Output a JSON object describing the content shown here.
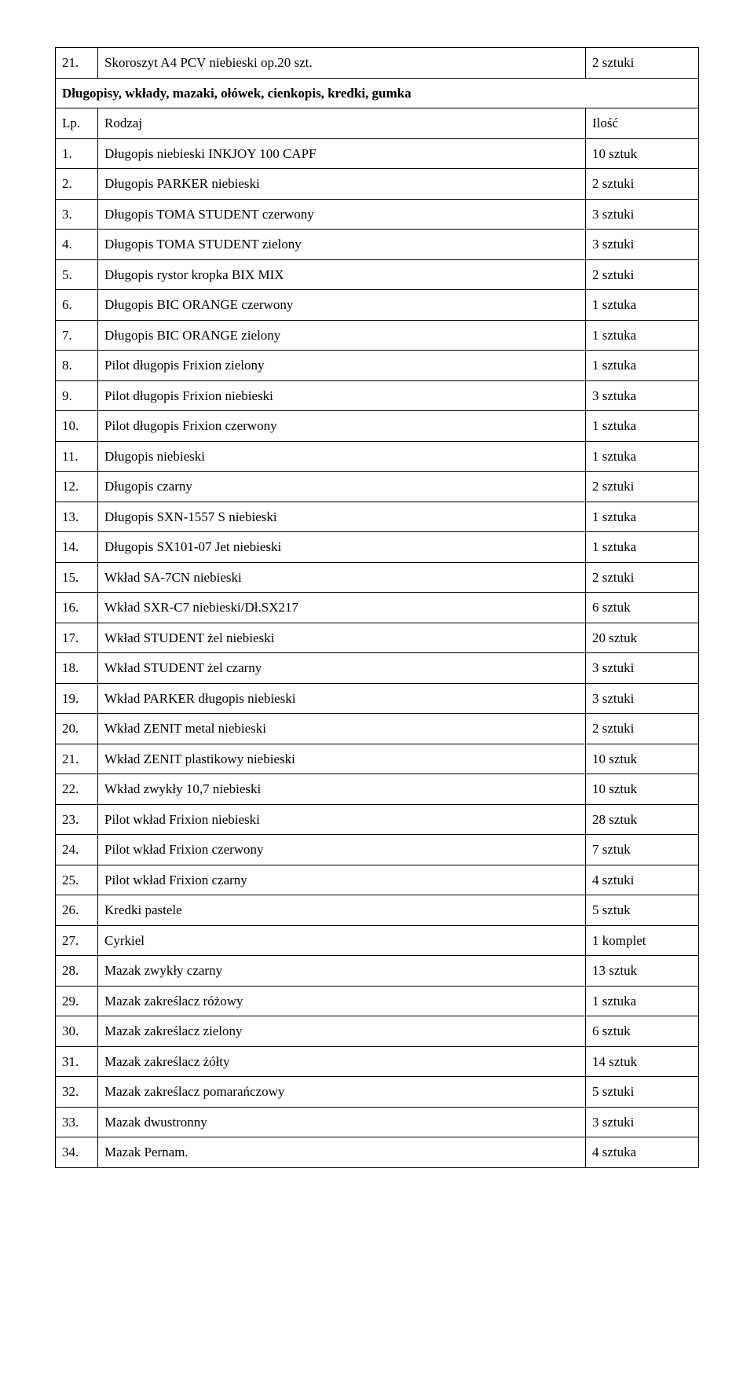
{
  "table1": {
    "row": {
      "num": "21.",
      "desc": "Skoroszyt A4 PCV niebieski op.20 szt.",
      "qty": "2 sztuki"
    }
  },
  "section2": {
    "title": "Długopisy, wkłady, mazaki, ołówek, cienkopis, kredki, gumka",
    "header": {
      "num": "Lp.",
      "desc": "Rodzaj",
      "qty": "Ilość"
    },
    "rows": [
      {
        "num": "1.",
        "desc": "Długopis niebieski INKJOY 100 CAPF",
        "qty": "10 sztuk"
      },
      {
        "num": "2.",
        "desc": "Długopis PARKER niebieski",
        "qty": "2 sztuki"
      },
      {
        "num": "3.",
        "desc": "Długopis TOMA STUDENT czerwony",
        "qty": "3 sztuki"
      },
      {
        "num": "4.",
        "desc": "Długopis TOMA STUDENT zielony",
        "qty": "3 sztuki"
      },
      {
        "num": "5.",
        "desc": "Długopis rystor kropka BIX MIX",
        "qty": "2 sztuki"
      },
      {
        "num": "6.",
        "desc": "Długopis BIC ORANGE czerwony",
        "qty": "1 sztuka"
      },
      {
        "num": "7.",
        "desc": "Długopis BIC ORANGE zielony",
        "qty": "1 sztuka"
      },
      {
        "num": "8.",
        "desc": "Pilot długopis Frixion zielony",
        "qty": "1 sztuka"
      },
      {
        "num": "9.",
        "desc": "Pilot długopis Frixion niebieski",
        "qty": "3 sztuka"
      },
      {
        "num": "10.",
        "desc": "Pilot długopis Frixion czerwony",
        "qty": "1 sztuka"
      },
      {
        "num": "11.",
        "desc": "Długopis niebieski",
        "qty": "1 sztuka"
      },
      {
        "num": "12.",
        "desc": "Długopis czarny",
        "qty": "2 sztuki"
      },
      {
        "num": "13.",
        "desc": "Długopis SXN-1557 S niebieski",
        "qty": "1 sztuka"
      },
      {
        "num": "14.",
        "desc": "Długopis SX101-07 Jet niebieski",
        "qty": "1 sztuka"
      },
      {
        "num": "15.",
        "desc": "Wkład SA-7CN niebieski",
        "qty": "2 sztuki"
      },
      {
        "num": "16.",
        "desc": "Wkład SXR-C7 niebieski/Dł.SX217",
        "qty": "6 sztuk"
      },
      {
        "num": "17.",
        "desc": "Wkład STUDENT żel niebieski",
        "qty": "20 sztuk"
      },
      {
        "num": "18.",
        "desc": "Wkład STUDENT żel czarny",
        "qty": "3 sztuki"
      },
      {
        "num": "19.",
        "desc": "Wkład PARKER długopis niebieski",
        "qty": "3 sztuki"
      },
      {
        "num": "20.",
        "desc": "Wkład ZENIT metal niebieski",
        "qty": "2 sztuki"
      },
      {
        "num": "21.",
        "desc": "Wkład ZENIT plastikowy niebieski",
        "qty": "10 sztuk"
      },
      {
        "num": "22.",
        "desc": "Wkład zwykły 10,7 niebieski",
        "qty": "10 sztuk"
      },
      {
        "num": "23.",
        "desc": "Pilot wkład Frixion niebieski",
        "qty": "28 sztuk"
      },
      {
        "num": "24.",
        "desc": "Pilot wkład Frixion czerwony",
        "qty": "7 sztuk"
      },
      {
        "num": "25.",
        "desc": "Pilot wkład Frixion czarny",
        "qty": "4 sztuki"
      },
      {
        "num": "26.",
        "desc": "Kredki pastele",
        "qty": "5 sztuk"
      },
      {
        "num": "27.",
        "desc": "Cyrkiel",
        "qty": "1 komplet"
      },
      {
        "num": "28.",
        "desc": "Mazak zwykły czarny",
        "qty": "13 sztuk"
      },
      {
        "num": "29.",
        "desc": "Mazak zakreślacz różowy",
        "qty": "1 sztuka"
      },
      {
        "num": "30.",
        "desc": "Mazak zakreślacz zielony",
        "qty": "6 sztuk"
      },
      {
        "num": "31.",
        "desc": "Mazak zakreślacz żółty",
        "qty": "14 sztuk"
      },
      {
        "num": "32.",
        "desc": "Mazak zakreślacz pomarańczowy",
        "qty": "5 sztuki"
      },
      {
        "num": "33.",
        "desc": "Mazak dwustronny",
        "qty": "3 sztuki"
      },
      {
        "num": "34.",
        "desc": "Mazak Pernam.",
        "qty": "4 sztuka"
      }
    ]
  }
}
